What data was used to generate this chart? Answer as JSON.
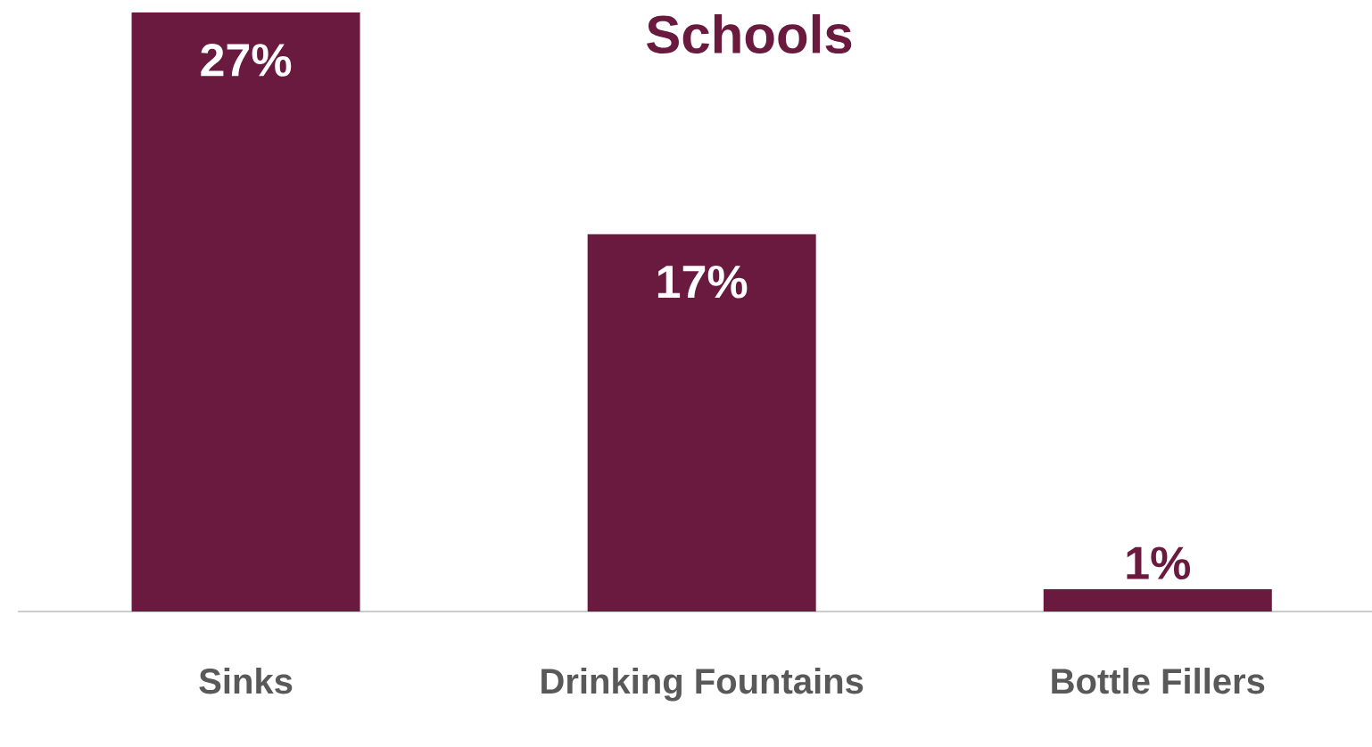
{
  "chart_data": {
    "type": "bar",
    "title": "Schools",
    "categories": [
      "Sinks",
      "Drinking Fountains",
      "Bottle Fillers"
    ],
    "values": [
      27,
      17,
      1
    ],
    "value_labels": [
      "27%",
      "17%",
      "1%"
    ],
    "color": "#6b1a3f"
  }
}
